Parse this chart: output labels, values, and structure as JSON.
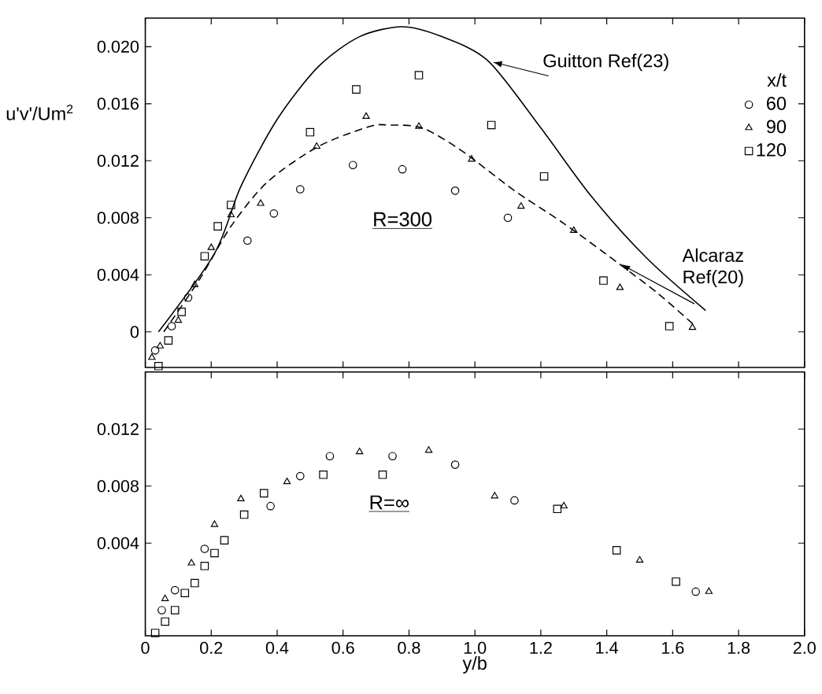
{
  "chart_data": [
    {
      "type": "scatter",
      "ylabel": "u'v'/Um$^{2}$",
      "legend_title": "x/t",
      "legend": "right",
      "annotations": [
        "R=300"
      ],
      "xlim": [
        0,
        2.0
      ],
      "ylim": [
        -0.0025,
        0.022
      ],
      "xticks": [
        0,
        0.2,
        0.4,
        0.6,
        0.8,
        1.0,
        1.2,
        1.4,
        1.6,
        1.8,
        2.0
      ],
      "yticks": [
        0,
        {
          "value": 0.004,
          "label": "0.004"
        },
        {
          "value": 0.008,
          "label": "0.008"
        },
        {
          "value": 0.012,
          "label": "0.012"
        },
        {
          "value": 0.016,
          "label": "0.016"
        },
        {
          "value": 0.02,
          "label": "0.020"
        }
      ],
      "tick_labels": "y",
      "series": [
        {
          "name": "60",
          "color": "#000000",
          "marker": "circle",
          "x": [
            0.03,
            0.08,
            0.13,
            0.31,
            0.39,
            0.47,
            0.63,
            0.78,
            0.94,
            1.1
          ],
          "values": [
            -0.0013,
            0.0004,
            0.0024,
            0.0064,
            0.0083,
            0.01,
            0.0117,
            0.0114,
            0.0099,
            0.008
          ]
        },
        {
          "name": "90",
          "color": "#000000",
          "marker": "triangle",
          "x": [
            0.02,
            0.045,
            0.1,
            0.15,
            0.2,
            0.26,
            0.35,
            0.52,
            0.67,
            0.83,
            0.99,
            1.14,
            1.3,
            1.44,
            1.66
          ],
          "values": [
            -0.0018,
            -0.001,
            0.0008,
            0.0033,
            0.0059,
            0.0082,
            0.009,
            0.013,
            0.0151,
            0.0144,
            0.0121,
            0.0088,
            0.0071,
            0.0031,
            0.0003
          ]
        },
        {
          "name": "120",
          "color": "#000000",
          "marker": "square",
          "x": [
            0.04,
            0.07,
            0.11,
            0.18,
            0.22,
            0.26,
            0.5,
            0.64,
            0.83,
            1.05,
            1.21,
            1.39,
            1.59
          ],
          "values": [
            -0.0024,
            -0.0006,
            0.0014,
            0.0053,
            0.0074,
            0.0089,
            0.014,
            0.017,
            0.018,
            0.0145,
            0.0109,
            0.0036,
            0.0004
          ]
        },
        {
          "name": "Guitton Ref(23)",
          "type": "line",
          "line_style": "solid",
          "color": "#000000",
          "x": [
            0.04,
            0.21,
            0.29,
            0.4,
            0.525,
            0.65,
            0.78,
            0.9,
            1.04,
            1.2,
            1.35,
            1.52,
            1.7
          ],
          "values": [
            0,
            0.0055,
            0.0102,
            0.0149,
            0.0186,
            0.0207,
            0.0214,
            0.0207,
            0.019,
            0.0143,
            0.0096,
            0.0052,
            0.0015
          ]
        },
        {
          "name": "Alcaraz Ref(20)",
          "type": "line",
          "line_style": "dashed",
          "color": "#000000",
          "x": [
            0.056,
            0.165,
            0.26,
            0.37,
            0.525,
            0.68,
            0.74,
            0.84,
            0.96,
            1.12,
            1.27,
            1.43,
            1.555,
            1.664
          ],
          "values": [
            0,
            0.0037,
            0.0074,
            0.0105,
            0.013,
            0.0144,
            0.0145,
            0.0143,
            0.0127,
            0.0099,
            0.0076,
            0.0049,
            0.0027,
            0.0005
          ]
        }
      ]
    },
    {
      "type": "scatter",
      "xlabel": "y/b",
      "annotations": [
        "R=∞"
      ],
      "xlim": [
        0,
        2.0
      ],
      "ylim": [
        -0.0025,
        0.016
      ],
      "xticks": [
        0,
        0.2,
        0.4,
        0.6,
        0.8,
        {
          "value": 1.0,
          "label": "1.0"
        },
        1.2,
        1.4,
        1.6,
        1.8,
        {
          "value": 2.0,
          "label": "2.0"
        }
      ],
      "yticks": [
        {
          "value": 0.004,
          "label": "0.004"
        },
        {
          "value": 0.008,
          "label": "0.008"
        },
        {
          "value": 0.012,
          "label": "0.012"
        }
      ],
      "series": [
        {
          "color": "#000000",
          "marker": "circle",
          "x": [
            0.05,
            0.09,
            0.18,
            0.38,
            0.47,
            0.56,
            0.75,
            0.94,
            1.12,
            1.67
          ],
          "values": [
            -0.0007,
            0.0007,
            0.0036,
            0.0066,
            0.0087,
            0.0101,
            0.0101,
            0.0095,
            0.007,
            0.0006
          ]
        },
        {
          "color": "#000000",
          "marker": "triangle",
          "x": [
            0.06,
            0.14,
            0.21,
            0.29,
            0.43,
            0.65,
            0.86,
            1.06,
            1.27,
            1.5,
            1.71
          ],
          "values": [
            0.0001,
            0.0026,
            0.0053,
            0.0071,
            0.0083,
            0.0104,
            0.0105,
            0.0073,
            0.0066,
            0.0028,
            0.0006
          ]
        },
        {
          "color": "#000000",
          "marker": "square",
          "x": [
            0.03,
            0.06,
            0.09,
            0.12,
            0.15,
            0.18,
            0.21,
            0.24,
            0.3,
            0.36,
            0.54,
            0.72,
            1.25,
            1.43,
            1.61
          ],
          "values": [
            -0.0023,
            -0.0015,
            -0.0007,
            0.0005,
            0.0012,
            0.0024,
            0.0033,
            0.0042,
            0.006,
            0.0075,
            0.0088,
            0.0088,
            0.0064,
            0.0035,
            0.0013
          ]
        }
      ]
    }
  ]
}
